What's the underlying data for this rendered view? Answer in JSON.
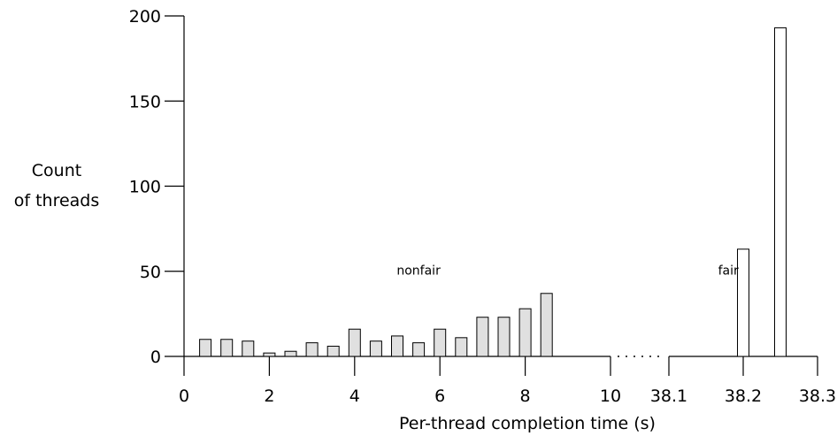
{
  "chart_data": {
    "type": "bar",
    "xlabel": "Per-thread completion time (s)",
    "ylabel_lines": [
      "Count",
      "of threads"
    ],
    "ylim": [
      0,
      200
    ],
    "yticks": [
      0,
      50,
      100,
      150,
      200
    ],
    "x_segments": [
      {
        "name": "left",
        "range": [
          0,
          10
        ],
        "ticks": [
          "0",
          "2",
          "4",
          "6",
          "8",
          "10"
        ]
      },
      {
        "name": "right",
        "range": [
          38.1,
          38.3
        ],
        "ticks": [
          "38.1",
          "38.2",
          "38.3"
        ]
      }
    ],
    "series": [
      {
        "name": "nonfair",
        "segment": "left",
        "fill": "#e0e0e0",
        "bins": [
          {
            "x": 0.5,
            "value": 10
          },
          {
            "x": 1.0,
            "value": 10
          },
          {
            "x": 1.5,
            "value": 9
          },
          {
            "x": 2.0,
            "value": 2
          },
          {
            "x": 2.5,
            "value": 3
          },
          {
            "x": 3.0,
            "value": 8
          },
          {
            "x": 3.5,
            "value": 6
          },
          {
            "x": 4.0,
            "value": 16
          },
          {
            "x": 4.5,
            "value": 9
          },
          {
            "x": 5.0,
            "value": 12
          },
          {
            "x": 5.5,
            "value": 8
          },
          {
            "x": 6.0,
            "value": 16
          },
          {
            "x": 6.5,
            "value": 11
          },
          {
            "x": 7.0,
            "value": 23
          },
          {
            "x": 7.5,
            "value": 23
          },
          {
            "x": 8.0,
            "value": 28
          },
          {
            "x": 8.5,
            "value": 37
          }
        ]
      },
      {
        "name": "fair",
        "segment": "right",
        "fill": "#ffffff",
        "bins": [
          {
            "x": 38.2,
            "value": 63
          },
          {
            "x": 38.25,
            "value": 193
          }
        ]
      }
    ],
    "annotations": [
      {
        "text": "nonfair",
        "x": 5.5,
        "y": 48
      },
      {
        "text": "fair",
        "x": 38.18,
        "y": 48
      }
    ],
    "grid": false,
    "axis_break": "dotted"
  }
}
